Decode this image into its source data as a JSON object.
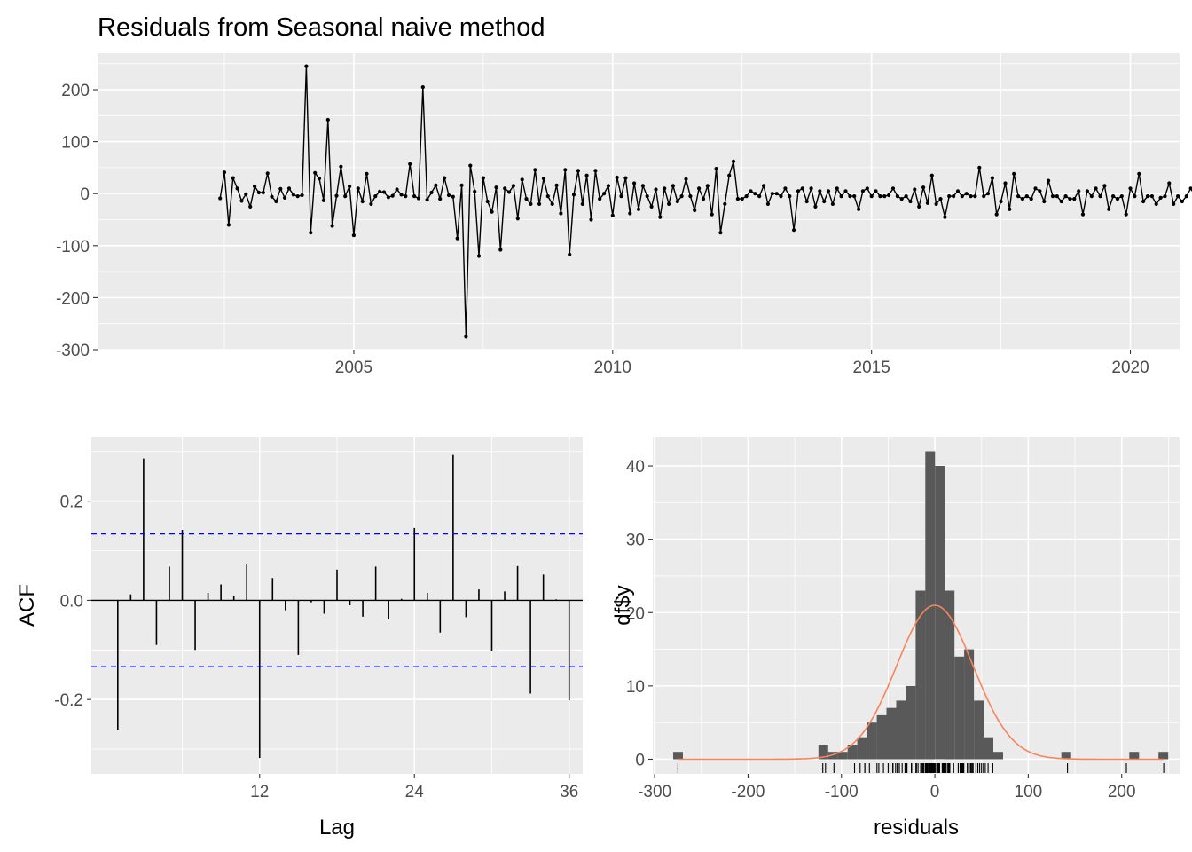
{
  "chart_data": [
    {
      "panel": "time-series",
      "type": "line",
      "title": "Residuals from Seasonal naive method",
      "xlabel": "",
      "ylabel": "",
      "xlim": [
        2000.05,
        2020.95
      ],
      "ylim": [
        -300,
        270
      ],
      "x_ticks": [
        2005,
        2010,
        2015,
        2020
      ],
      "y_ticks": [
        -300,
        -200,
        -100,
        0,
        100,
        200
      ],
      "x_start": 2002.4167,
      "x_step": 0.083333,
      "values": [
        -9,
        41,
        -60,
        30,
        10,
        -14,
        -1,
        -25,
        14,
        2,
        2,
        39,
        -6,
        -15,
        9,
        -8,
        10,
        -2,
        -5,
        -3,
        245,
        -75,
        40,
        29,
        -13,
        142,
        -62,
        -4,
        52,
        -5,
        14,
        -80,
        10,
        -15,
        38,
        -20,
        -5,
        4,
        3,
        -7,
        -4,
        8,
        -2,
        -5,
        57,
        -5,
        -9,
        205,
        -12,
        2,
        16,
        -10,
        30,
        -3,
        -6,
        -86,
        16,
        -275,
        54,
        4,
        -120,
        30,
        -15,
        -35,
        12,
        -108,
        10,
        3,
        15,
        -48,
        27,
        -10,
        -20,
        46,
        -20,
        29,
        -5,
        -20,
        16,
        -38,
        46,
        -117,
        -2,
        44,
        -20,
        35,
        -50,
        44,
        -10,
        0,
        15,
        -42,
        31,
        -5,
        30,
        -38,
        20,
        -30,
        15,
        -5,
        -25,
        8,
        -45,
        10,
        -20,
        15,
        -15,
        -5,
        28,
        -5,
        -32,
        10,
        -10,
        15,
        -40,
        48,
        -75,
        -20,
        35,
        62,
        -10,
        -10,
        -5,
        5,
        0,
        -5,
        15,
        -20,
        0,
        0,
        -5,
        10,
        -5,
        -70,
        5,
        10,
        -15,
        10,
        -25,
        5,
        -15,
        5,
        -20,
        10,
        -5,
        5,
        -5,
        -5,
        -30,
        5,
        10,
        -5,
        5,
        -5,
        -5,
        -3,
        10,
        -5,
        -10,
        -5,
        -15,
        8,
        -25,
        12,
        -18,
        35,
        -20,
        -10,
        -45,
        -5,
        -5,
        5,
        -5,
        0,
        -5,
        -5,
        50,
        -5,
        0,
        30,
        -40,
        -15,
        20,
        -30,
        38,
        -5,
        -10,
        -5,
        -10,
        10,
        5,
        -15,
        25,
        -5,
        -5,
        -15,
        -5,
        -10,
        -10,
        5,
        -40,
        5,
        -5,
        10,
        -5,
        15,
        -30,
        -5,
        -10,
        -5,
        -40,
        10,
        -5,
        38,
        -15,
        -5,
        -5,
        -20,
        -8,
        -5,
        20,
        -20,
        -5,
        -15,
        -5,
        10,
        -5,
        5,
        -30,
        15,
        -40,
        -5,
        -5,
        -5,
        35,
        -55,
        8,
        -45,
        35
      ]
    },
    {
      "panel": "acf",
      "type": "bar",
      "title": "",
      "xlabel": "Lag",
      "ylabel": "ACF",
      "xlim": [
        -1.05,
        37.05
      ],
      "ylim": [
        -0.35,
        0.33
      ],
      "x_ticks": [
        12,
        24,
        36
      ],
      "y_ticks": [
        -0.2,
        0.0,
        0.2
      ],
      "confidence_bound": 0.134,
      "lags": [
        1,
        2,
        3,
        4,
        5,
        6,
        7,
        8,
        9,
        10,
        11,
        12,
        13,
        14,
        15,
        16,
        17,
        18,
        19,
        20,
        21,
        22,
        23,
        24,
        25,
        26,
        27,
        28,
        29,
        30,
        31,
        32,
        33,
        34,
        35,
        36
      ],
      "values": [
        -0.261,
        0.012,
        0.286,
        -0.09,
        0.068,
        0.142,
        -0.1,
        0.015,
        0.032,
        0.008,
        0.072,
        -0.318,
        0.045,
        -0.02,
        -0.11,
        -0.004,
        -0.027,
        0.062,
        -0.01,
        -0.033,
        0.068,
        -0.038,
        0.003,
        0.146,
        0.015,
        -0.065,
        0.293,
        -0.034,
        0.022,
        -0.102,
        0.018,
        0.069,
        -0.188,
        0.052,
        0.002,
        -0.202
      ]
    },
    {
      "panel": "histogram",
      "type": "bar",
      "title": "",
      "xlabel": "residuals",
      "ylabel": "df$y",
      "xlim": [
        -302,
        262
      ],
      "ylim": [
        -2,
        44
      ],
      "x_ticks": [
        -300,
        -200,
        -100,
        0,
        100,
        200
      ],
      "y_ticks": [
        0,
        10,
        20,
        30,
        40
      ],
      "bin_width": 10.4,
      "bin_centers": [
        -275,
        -119.4,
        -109,
        -98.6,
        -88.2,
        -77.8,
        -67.4,
        -57,
        -46.6,
        -36.2,
        -25.8,
        -15.4,
        -5,
        5.4,
        15.8,
        26.2,
        36.6,
        47,
        57.4,
        67.8,
        140.6,
        213.4,
        244.6
      ],
      "counts": [
        1,
        2,
        1,
        1,
        2,
        3,
        5,
        6,
        7,
        8,
        10,
        23,
        42,
        40,
        23,
        14,
        15,
        8,
        3,
        1,
        1,
        1,
        1
      ],
      "normal_density_peak": 21,
      "normal_density_mean": 0,
      "normal_density_sd": 41,
      "density_color": "#f8845b",
      "bar_color": "#595959"
    }
  ],
  "colors": {
    "panel_background": "#ebebeb",
    "grid": "#ffffff",
    "series": "#000000",
    "confidence_line": "#0000ff"
  }
}
